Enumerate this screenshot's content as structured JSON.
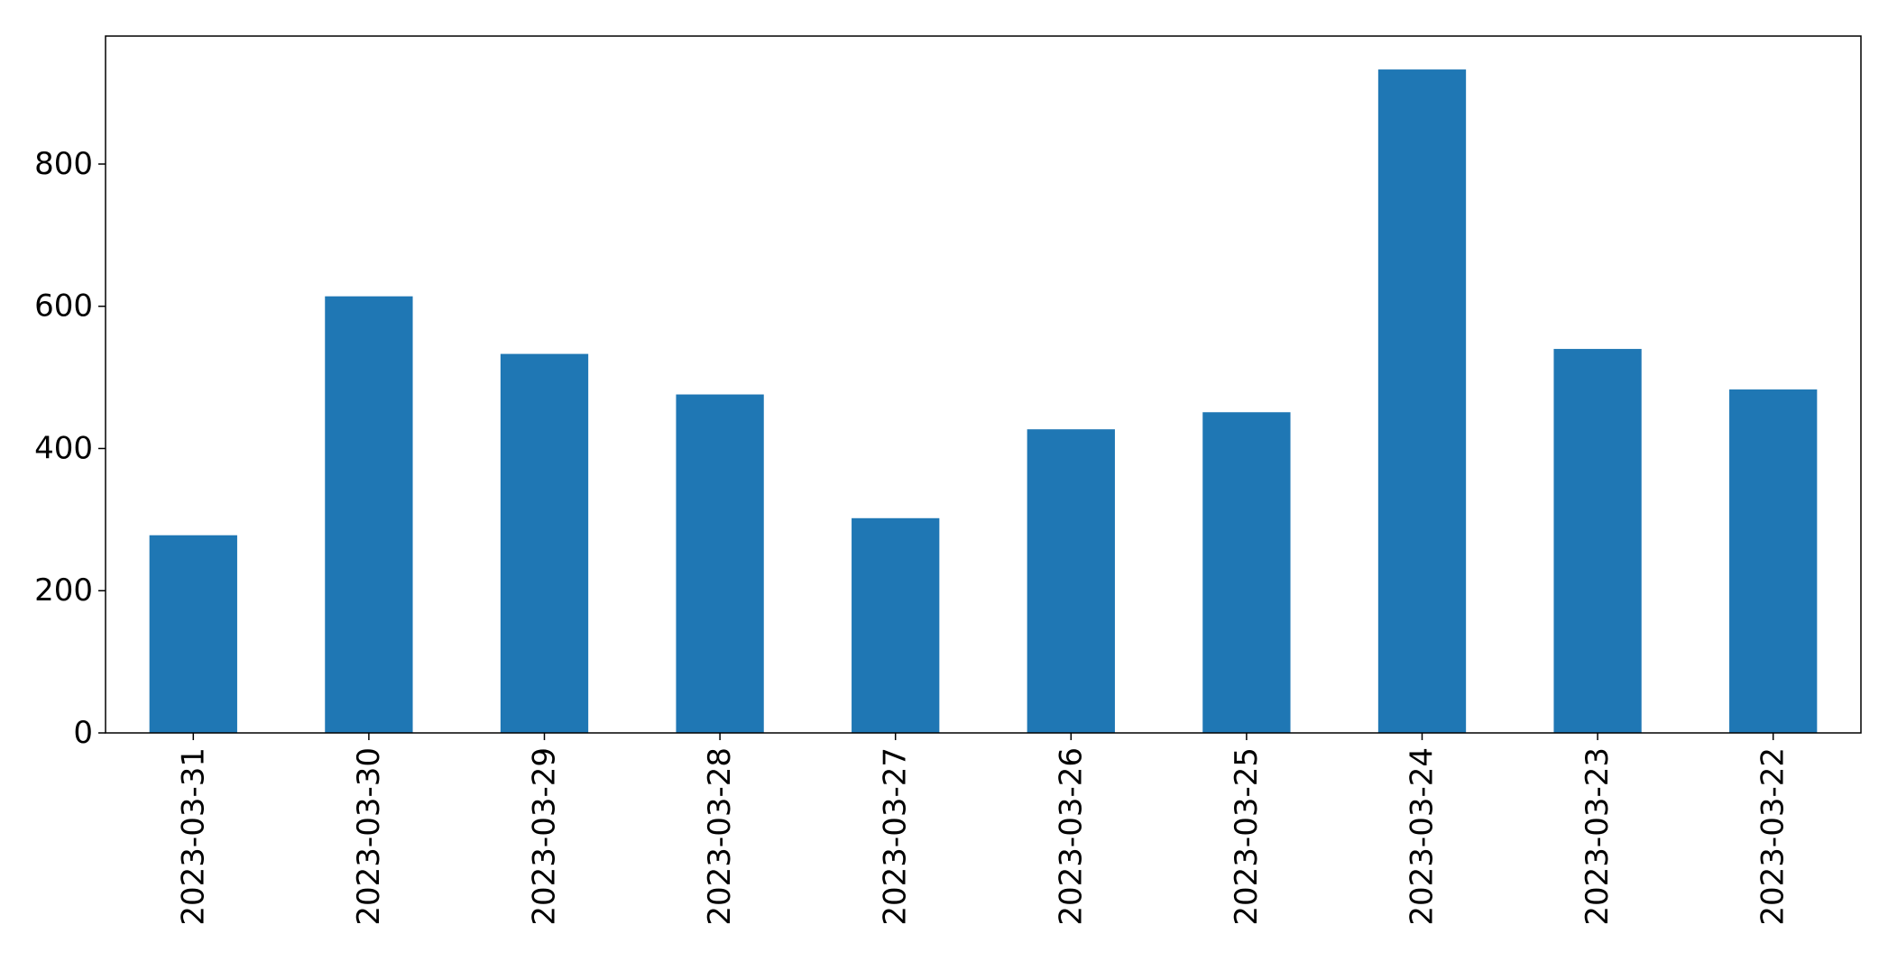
{
  "chart_data": {
    "type": "bar",
    "title": "",
    "xlabel": "",
    "ylabel": "",
    "categories": [
      "2023-03-31",
      "2023-03-30",
      "2023-03-29",
      "2023-03-28",
      "2023-03-27",
      "2023-03-26",
      "2023-03-25",
      "2023-03-24",
      "2023-03-23",
      "2023-03-22"
    ],
    "values": [
      278,
      614,
      533,
      476,
      302,
      427,
      451,
      933,
      540,
      483
    ],
    "ylim": [
      0,
      980
    ],
    "yticks": [
      0,
      200,
      400,
      600,
      800
    ],
    "ytick_labels": [
      "0",
      "200",
      "400",
      "600",
      "800"
    ],
    "bar_color": "#1f77b4",
    "grid": false,
    "legend": "none"
  }
}
